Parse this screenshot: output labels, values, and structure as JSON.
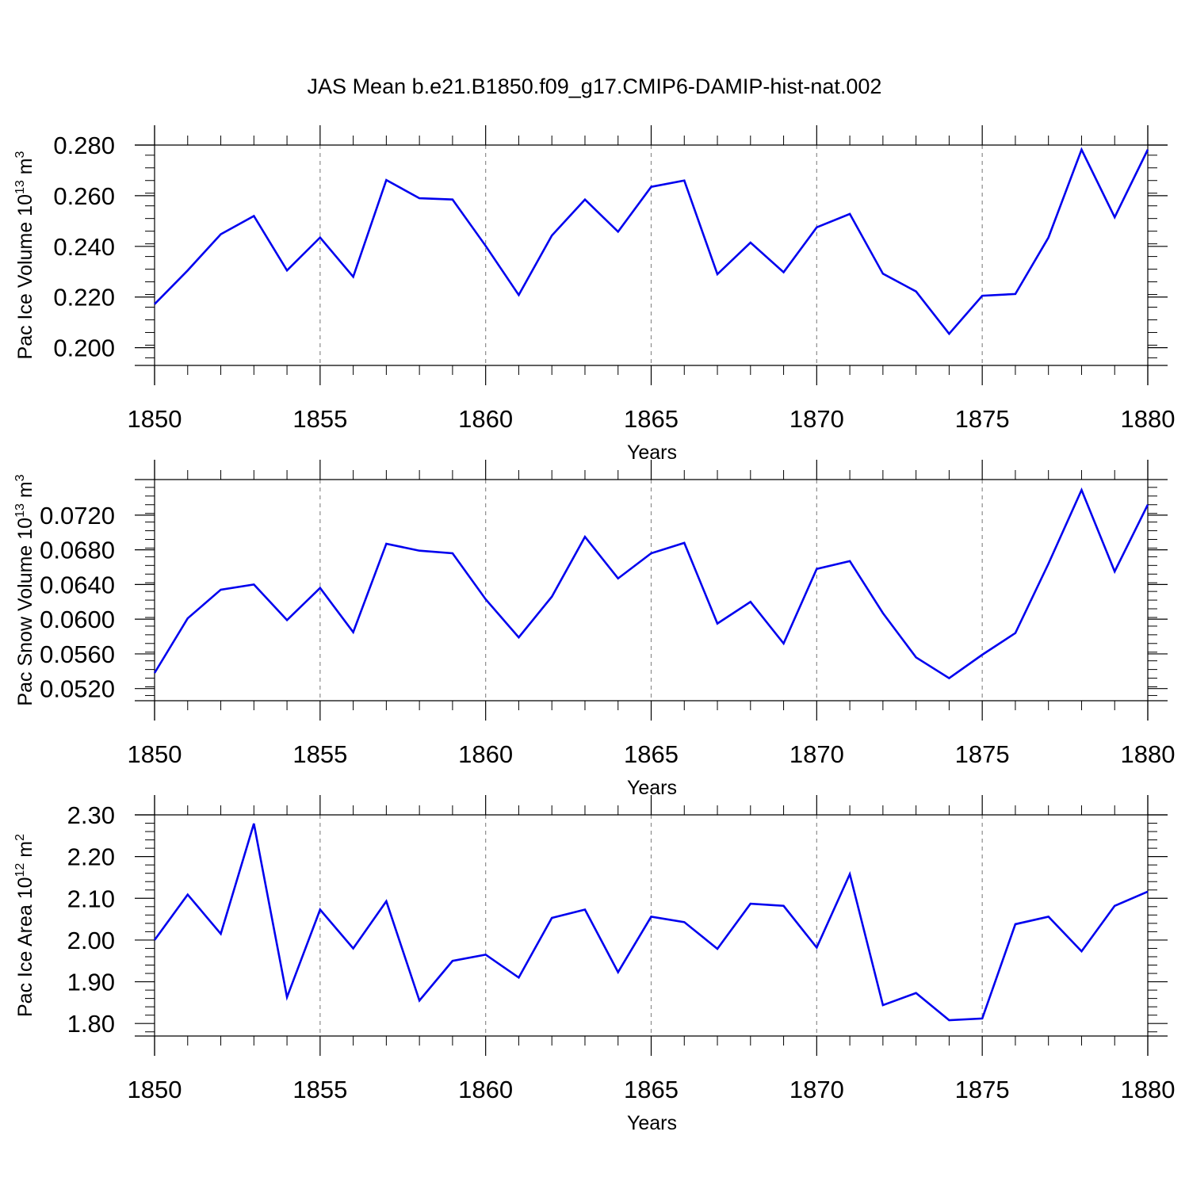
{
  "title": "JAS Mean b.e21.B1850.f09_g17.CMIP6-DAMIP-hist-nat.002",
  "colors": {
    "series": "#0000ee",
    "axes": "#000000",
    "grid": "#8c8c8c"
  },
  "chart_data": [
    {
      "type": "line",
      "title": "JAS Mean b.e21.B1850.f09_g17.CMIP6-DAMIP-hist-nat.002",
      "xlabel": "Years",
      "ylabel": {
        "base": "Pac Ice Volume 10",
        "exponent": "13",
        "unit": " m",
        "unit_exponent": "3"
      },
      "xlim": [
        1850,
        1880
      ],
      "ylim": [
        0.193,
        0.28
      ],
      "x_ticks": [
        "1850",
        "1855",
        "1860",
        "1865",
        "1870",
        "1875",
        "1880"
      ],
      "y_ticks": [
        "0.200",
        "0.220",
        "0.240",
        "0.260",
        "0.280"
      ],
      "grid": "vertical dashed at major x ticks",
      "x": [
        1850,
        1851,
        1852,
        1853,
        1854,
        1855,
        1856,
        1857,
        1858,
        1859,
        1860,
        1861,
        1862,
        1863,
        1864,
        1865,
        1866,
        1867,
        1868,
        1869,
        1870,
        1871,
        1872,
        1873,
        1874,
        1875,
        1876,
        1877,
        1878,
        1879,
        1880
      ],
      "values": [
        0.2172,
        0.2305,
        0.2448,
        0.252,
        0.2305,
        0.2435,
        0.228,
        0.2662,
        0.259,
        0.2585,
        0.2402,
        0.2208,
        0.2443,
        0.2585,
        0.2458,
        0.2635,
        0.266,
        0.229,
        0.2415,
        0.2298,
        0.2475,
        0.2528,
        0.2292,
        0.2222,
        0.2055,
        0.2205,
        0.2212,
        0.2435,
        0.2782,
        0.2515,
        0.2782
      ]
    },
    {
      "type": "line",
      "xlabel": "Years",
      "ylabel": {
        "base": "Pac Snow Volume 10",
        "exponent": "13",
        "unit": " m",
        "unit_exponent": "3"
      },
      "xlim": [
        1850,
        1880
      ],
      "ylim": [
        0.0506,
        0.0761
      ],
      "x_ticks": [
        "1850",
        "1855",
        "1860",
        "1865",
        "1870",
        "1875",
        "1880"
      ],
      "y_ticks": [
        "0.0520",
        "0.0560",
        "0.0600",
        "0.0640",
        "0.0680",
        "0.0720"
      ],
      "grid": "vertical dashed at major x ticks",
      "x": [
        1850,
        1851,
        1852,
        1853,
        1854,
        1855,
        1856,
        1857,
        1858,
        1859,
        1860,
        1861,
        1862,
        1863,
        1864,
        1865,
        1866,
        1867,
        1868,
        1869,
        1870,
        1871,
        1872,
        1873,
        1874,
        1875,
        1876,
        1877,
        1878,
        1879,
        1880
      ],
      "values": [
        0.0538,
        0.0601,
        0.0634,
        0.064,
        0.0599,
        0.0636,
        0.0585,
        0.0687,
        0.0679,
        0.0676,
        0.0623,
        0.0579,
        0.0626,
        0.0695,
        0.0647,
        0.0676,
        0.0688,
        0.0595,
        0.062,
        0.0572,
        0.0658,
        0.0667,
        0.0607,
        0.0556,
        0.0532,
        0.0559,
        0.0584,
        0.0664,
        0.0749,
        0.0655,
        0.0732
      ]
    },
    {
      "type": "line",
      "xlabel": "Years",
      "ylabel": {
        "base": "Pac Ice Area 10",
        "exponent": "12",
        "unit": " m",
        "unit_exponent": "2"
      },
      "xlim": [
        1850,
        1880
      ],
      "ylim": [
        1.77,
        2.3
      ],
      "x_ticks": [
        "1850",
        "1855",
        "1860",
        "1865",
        "1870",
        "1875",
        "1880"
      ],
      "y_ticks": [
        "1.80",
        "1.90",
        "2.00",
        "2.10",
        "2.20",
        "2.30"
      ],
      "grid": "vertical dashed at major x ticks",
      "x": [
        1850,
        1851,
        1852,
        1853,
        1854,
        1855,
        1856,
        1857,
        1858,
        1859,
        1860,
        1861,
        1862,
        1863,
        1864,
        1865,
        1866,
        1867,
        1868,
        1869,
        1870,
        1871,
        1872,
        1873,
        1874,
        1875,
        1876,
        1877,
        1878,
        1879,
        1880
      ],
      "values": [
        2.0,
        2.109,
        2.015,
        2.279,
        1.863,
        2.073,
        1.98,
        2.093,
        1.855,
        1.95,
        1.965,
        1.91,
        2.053,
        2.073,
        1.923,
        2.056,
        2.043,
        1.979,
        2.087,
        2.082,
        1.982,
        2.158,
        1.844,
        1.873,
        1.808,
        1.812,
        2.038,
        2.056,
        1.973,
        2.082,
        2.116
      ]
    }
  ]
}
